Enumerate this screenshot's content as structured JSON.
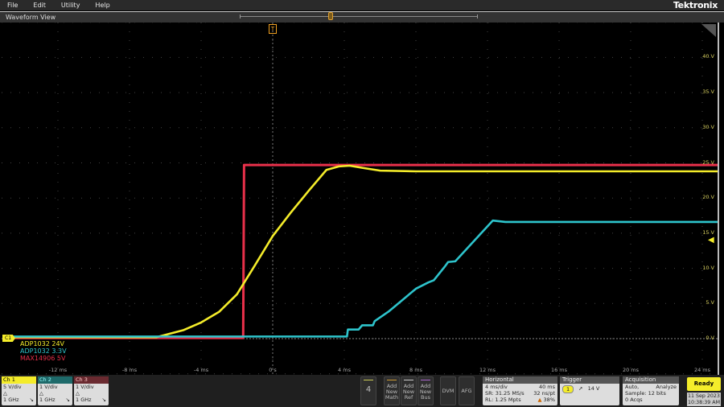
{
  "menu": [
    "File",
    "Edit",
    "Utility",
    "Help"
  ],
  "logo": "Tektronix",
  "view_title": "Waveform View",
  "trigger_marker": "T",
  "axes": {
    "x_ticks": [
      -12,
      -8,
      -4,
      0,
      4,
      8,
      12,
      16,
      20,
      24
    ],
    "x_tick_labels": [
      "-12 ms",
      "-8 ms",
      "-4 ms",
      "0 s",
      "4 ms",
      "8 ms",
      "12 ms",
      "16 ms",
      "20 ms",
      "24 ms"
    ],
    "y_ticks": [
      0,
      5,
      10,
      15,
      20,
      25,
      30,
      35,
      40
    ],
    "y_tick_labels": [
      "0 V",
      "5 V",
      "10 V",
      "15 V",
      "20 V",
      "25 V",
      "30 V",
      "35 V",
      "40 V"
    ],
    "xlim_ms": [
      -15.1,
      24.9
    ],
    "ylim_V": [
      -5,
      45
    ]
  },
  "channel_marker": "C1",
  "legend": [
    {
      "label": "ADP1032 24V",
      "color": "#f4ec2a"
    },
    {
      "label": "ADP1032 3.3V",
      "color": "#2ec4cc"
    },
    {
      "label": "MAX14906 5V",
      "color": "#e8304a"
    }
  ],
  "chart_data": {
    "type": "line",
    "xlabel": "",
    "ylabel": "",
    "grid": true,
    "series": [
      {
        "name": "MAX14906 5V",
        "color": "#e8304a",
        "x": [
          -15.1,
          -1.65,
          -1.6,
          24.9
        ],
        "y": [
          0.1,
          0.1,
          24.7,
          24.7
        ]
      },
      {
        "name": "ADP1032 24V",
        "color": "#f4ec2a",
        "x": [
          -15.1,
          -6.5,
          -5,
          -4,
          -3,
          -2,
          -1,
          0,
          1,
          2,
          3,
          3.7,
          4.3,
          5,
          6,
          8,
          12,
          24.9
        ],
        "y": [
          0.2,
          0.2,
          1.2,
          2.3,
          3.8,
          6.3,
          10.4,
          14.6,
          17.9,
          21.0,
          24.0,
          24.5,
          24.6,
          24.3,
          23.9,
          23.8,
          23.8,
          23.8
        ]
      },
      {
        "name": "ADP1032 3.3V",
        "color": "#2ec4cc",
        "x": [
          -15.1,
          4.15,
          4.2,
          4.8,
          5.0,
          5.6,
          5.7,
          6.5,
          8,
          8.7,
          9,
          9.6,
          9.8,
          10.2,
          12.3,
          13,
          24.9
        ],
        "y": [
          0.3,
          0.3,
          1.3,
          1.3,
          1.9,
          1.9,
          2.5,
          3.9,
          7.1,
          8.0,
          8.3,
          10.2,
          10.9,
          11.0,
          16.8,
          16.6,
          16.6
        ]
      }
    ]
  },
  "trigger_level_V": 14,
  "channels": [
    {
      "label": "Ch 1",
      "scale": "5 V/div",
      "bw": "1 GHz",
      "color": "#f4ec2a",
      "text": "#000"
    },
    {
      "label": "Ch 2",
      "scale": "1 V/div",
      "bw": "1 GHz",
      "color": "#1e6a6a",
      "text": "#9ff"
    },
    {
      "label": "Ch 3",
      "scale": "1 V/div",
      "bw": "1 GHz",
      "color": "#6a2a30",
      "text": "#fcc"
    }
  ],
  "buttons": {
    "more": "4",
    "math": "Add New Math",
    "ref": "Add New Ref",
    "bus": "Add New Bus",
    "dvm": "DVM",
    "afg": "AFG"
  },
  "horizontal": {
    "title": "Horizontal",
    "scale": "4 ms/div",
    "duration": "40 ms",
    "sr": "SR: 31.25 MS/s",
    "pt": "32 ns/pt",
    "rl": "RL: 1.25 Mpts",
    "pos": "38%"
  },
  "trigger": {
    "title": "Trigger",
    "source": "1",
    "level": "14 V"
  },
  "acquisition": {
    "title": "Acquisition",
    "mode": "Auto,",
    "analyze": "Analyze",
    "sample": "Sample: 12 bits",
    "acqs": "0 Acqs"
  },
  "status": "Ready",
  "date": "11 Sep 2023",
  "time": "10:38:39 AM"
}
